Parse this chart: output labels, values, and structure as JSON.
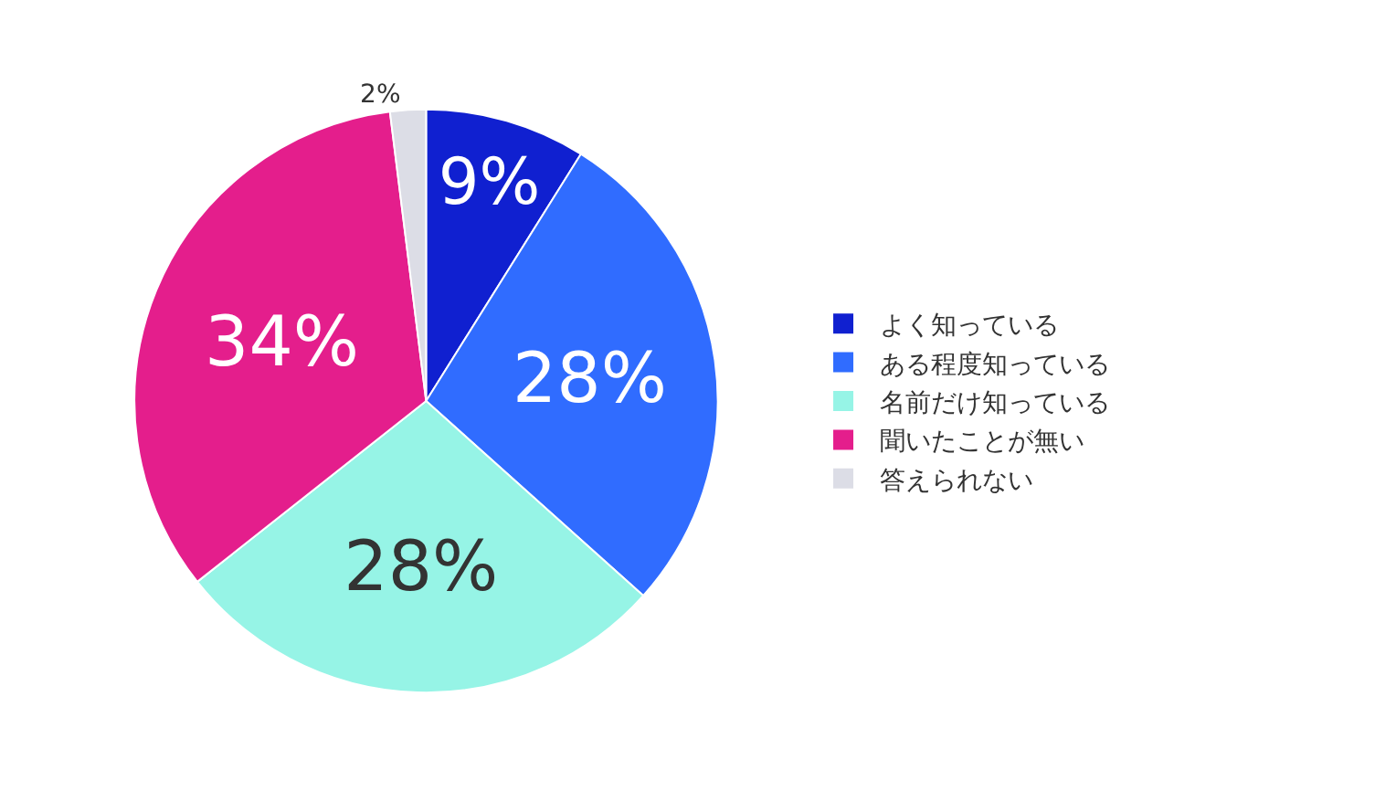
{
  "chart_data": {
    "type": "pie",
    "categories": [
      "よく知っている",
      "ある程度知っている",
      "名前だけ知っている",
      "聞いたことが無い",
      "答えられない"
    ],
    "values": [
      9,
      28,
      28,
      34,
      2
    ],
    "colors": [
      "#1020d0",
      "#306cff",
      "#96f4e6",
      "#e41e8c",
      "#dcdde6"
    ],
    "value_labels": [
      "9%",
      "28%",
      "28%",
      "34%",
      "2%"
    ],
    "legend": "right"
  }
}
